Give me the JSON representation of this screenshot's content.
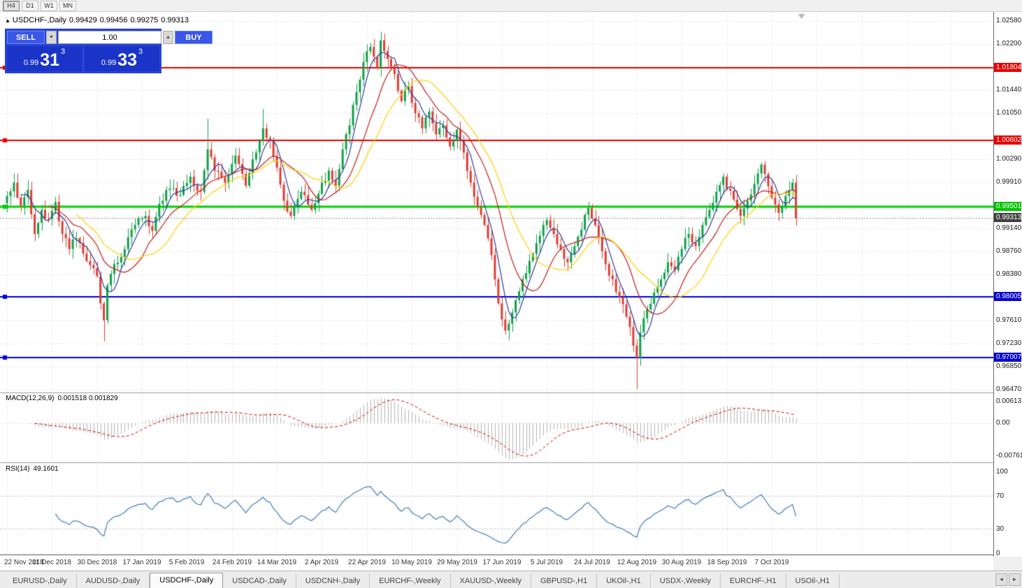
{
  "timeframe_toolbar": {
    "buttons": [
      "H4",
      "D1",
      "W1",
      "MN"
    ],
    "active": "H4"
  },
  "icons": {
    "collapse_icon": "▲",
    "spin_down": "▼",
    "spin_up": "▲",
    "tab_left": "◄",
    "tab_right": "►"
  },
  "chart_header": {
    "symbol": "USDCHF-,Daily",
    "open": "0.99429",
    "high": "0.99456",
    "low": "0.99275",
    "close": "0.99313"
  },
  "trade_panel": {
    "sell_label": "SELL",
    "buy_label": "BUY",
    "volume": "1.00",
    "bid": {
      "prefix": "0.99",
      "big": "31",
      "sup": "3"
    },
    "ask": {
      "prefix": "0.99",
      "big": "33",
      "sup": "3"
    }
  },
  "price_axis": {
    "grid_labels": [
      {
        "text": "1.02580",
        "price": 1.0258
      },
      {
        "text": "1.02200",
        "price": 1.022
      },
      {
        "text": "1.01440",
        "price": 1.0144
      },
      {
        "text": "1.01050",
        "price": 1.0105
      },
      {
        "text": "1.00290",
        "price": 1.0029
      },
      {
        "text": "0.99910",
        "price": 0.9991
      },
      {
        "text": "0.99140",
        "price": 0.9914
      },
      {
        "text": "0.98760",
        "price": 0.9876
      },
      {
        "text": "0.98380",
        "price": 0.9838
      },
      {
        "text": "0.97610",
        "price": 0.9761
      },
      {
        "text": "0.97230",
        "price": 0.9723
      },
      {
        "text": "0.96850",
        "price": 0.9685
      },
      {
        "text": "0.96470",
        "price": 0.9647
      }
    ]
  },
  "object_lines": [
    {
      "label": "1.01804",
      "price": 1.01804,
      "line": "#e80000",
      "width": 2,
      "box_bg": "#e80000",
      "box_fg": "#ffffff"
    },
    {
      "label": "1.00602",
      "price": 1.00602,
      "line": "#e80000",
      "width": 2,
      "box_bg": "#e80000",
      "box_fg": "#ffffff"
    },
    {
      "label": "0.99501",
      "price": 0.99501,
      "line": "#00d400",
      "width": 3,
      "box_bg": "#00c400",
      "box_fg": "#ffffff"
    },
    {
      "label": "0.98005",
      "price": 0.98005,
      "line": "#0000e0",
      "width": 2,
      "box_bg": "#0000d0",
      "box_fg": "#ffffff"
    },
    {
      "label": "0.97007",
      "price": 0.97007,
      "line": "#0000e0",
      "width": 2,
      "box_bg": "#0000d0",
      "box_fg": "#ffffff"
    }
  ],
  "current_price_line": {
    "label": "0.99313",
    "price": 0.99313,
    "line": "#909090",
    "box_bg": "#404040",
    "box_fg": "#ffffff"
  },
  "date_axis": [
    "22 Nov 2018",
    "11 Dec 2018",
    "30 Dec 2018",
    "17 Jan 2019",
    "5 Feb 2019",
    "24 Feb 2019",
    "14 Mar 2019",
    "2 Apr 2019",
    "22 Apr 2019",
    "10 May 2019",
    "29 May 2019",
    "17 Jun 2019",
    "5 Jul 2019",
    "24 Jul 2019",
    "12 Aug 2019",
    "30 Aug 2019",
    "18 Sep 2019",
    "7 Oct 2019"
  ],
  "macd_panel": {
    "label": "MACD(12,26,9)",
    "values": "0.001518 0.001829",
    "axis_labels": [
      "0.00613",
      "0.00",
      "-0.00761"
    ]
  },
  "rsi_panel": {
    "label": "RSI(14)",
    "value": "49.1601",
    "axis_labels": [
      "100",
      "70",
      "30",
      "0"
    ],
    "levels": [
      70,
      30
    ]
  },
  "tabs": {
    "items": [
      {
        "label": "EURUSD-,Daily",
        "active": false
      },
      {
        "label": "AUDUSD-,Daily",
        "active": false
      },
      {
        "label": "USDCHF-,Daily",
        "active": true
      },
      {
        "label": "USDCAD-,Daily",
        "active": false
      },
      {
        "label": "USDCNH-,Daily",
        "active": false
      },
      {
        "label": "EURCHF-,Weekly",
        "active": false
      },
      {
        "label": "XAUUSD-,Weekly",
        "active": false
      },
      {
        "label": "GBPUSD-,H1",
        "active": false
      },
      {
        "label": "UKOil-,H1",
        "active": false
      },
      {
        "label": "USDX-,Weekly",
        "active": false
      },
      {
        "label": "EURCHF-,H1",
        "active": false
      },
      {
        "label": "USOil-,H1",
        "active": false
      }
    ]
  },
  "colors": {
    "candle_up": "#0fa14a",
    "candle_down": "#e03c32",
    "ma_fast": "#2f3c9e",
    "ma_mid": "#c41e1e",
    "ma_slow": "#ffd200",
    "macd_hist": "#b4b4b4",
    "macd_signal": "#d40000",
    "rsi_line": "#3e7cb8",
    "grid": "#dcdcdc",
    "shift_marker": "#b8b8b8"
  },
  "chart_data": {
    "type": "candlestick",
    "symbol": "USDCHF",
    "timeframe": "Daily",
    "bars": 229,
    "approximate": true,
    "y_range": [
      0.9647,
      1.0258
    ],
    "grid_prices": [
      1.0258,
      1.022,
      1.0182,
      1.0144,
      1.0105,
      1.0067,
      1.0029,
      0.9991,
      0.9953,
      0.9914,
      0.9876,
      0.9838,
      0.98,
      0.9761,
      0.9723,
      0.9685,
      0.9647
    ],
    "close_keypoints": [
      [
        0,
        0.9968
      ],
      [
        2,
        0.999
      ],
      [
        4,
        0.9952
      ],
      [
        6,
        0.9978
      ],
      [
        8,
        0.9905
      ],
      [
        10,
        0.9945
      ],
      [
        12,
        0.993
      ],
      [
        14,
        0.9958
      ],
      [
        16,
        0.9905
      ],
      [
        18,
        0.988
      ],
      [
        20,
        0.9898
      ],
      [
        23,
        0.986
      ],
      [
        26,
        0.9835
      ],
      [
        27,
        0.979
      ],
      [
        28,
        0.9762
      ],
      [
        29,
        0.982
      ],
      [
        31,
        0.9855
      ],
      [
        34,
        0.988
      ],
      [
        37,
        0.992
      ],
      [
        40,
        0.9935
      ],
      [
        42,
        0.991
      ],
      [
        44,
        0.9955
      ],
      [
        47,
        0.998
      ],
      [
        50,
        0.997
      ],
      [
        53,
        1.0
      ],
      [
        56,
        0.9975
      ],
      [
        58,
        1.0045
      ],
      [
        60,
        1.001
      ],
      [
        63,
        0.999
      ],
      [
        66,
        1.0035
      ],
      [
        69,
        0.9985
      ],
      [
        72,
        1.004
      ],
      [
        74,
        1.008
      ],
      [
        76,
        1.006
      ],
      [
        78,
        1.0015
      ],
      [
        80,
        0.996
      ],
      [
        82,
        0.9935
      ],
      [
        85,
        0.9975
      ],
      [
        88,
        0.9945
      ],
      [
        91,
        0.999
      ],
      [
        93,
        1.001
      ],
      [
        95,
        0.9985
      ],
      [
        97,
        1.0045
      ],
      [
        99,
        1.0085
      ],
      [
        101,
        1.014
      ],
      [
        103,
        1.019
      ],
      [
        105,
        1.0215
      ],
      [
        107,
        1.018
      ],
      [
        108,
        1.0226
      ],
      [
        110,
        1.0195
      ],
      [
        112,
        1.017
      ],
      [
        114,
        1.0125
      ],
      [
        116,
        1.015
      ],
      [
        118,
        1.0105
      ],
      [
        120,
        1.008
      ],
      [
        122,
        1.0108
      ],
      [
        124,
        1.007
      ],
      [
        126,
        1.0085
      ],
      [
        128,
        1.005
      ],
      [
        130,
        1.0078
      ],
      [
        132,
        1.004
      ],
      [
        134,
        0.999
      ],
      [
        136,
        0.995
      ],
      [
        138,
        0.992
      ],
      [
        140,
        0.987
      ],
      [
        142,
        0.979
      ],
      [
        144,
        0.9745
      ],
      [
        146,
        0.9775
      ],
      [
        148,
        0.981
      ],
      [
        150,
        0.984
      ],
      [
        152,
        0.9872
      ],
      [
        154,
        0.9902
      ],
      [
        156,
        0.9928
      ],
      [
        158,
        0.9905
      ],
      [
        160,
        0.988
      ],
      [
        162,
        0.9858
      ],
      [
        164,
        0.9885
      ],
      [
        166,
        0.9912
      ],
      [
        168,
        0.9948
      ],
      [
        171,
        0.99
      ],
      [
        173,
        0.9855
      ],
      [
        175,
        0.983
      ],
      [
        177,
        0.98
      ],
      [
        179,
        0.9768
      ],
      [
        181,
        0.972
      ],
      [
        182,
        0.97
      ],
      [
        183,
        0.9742
      ],
      [
        185,
        0.978
      ],
      [
        187,
        0.9808
      ],
      [
        189,
        0.983
      ],
      [
        191,
        0.9858
      ],
      [
        193,
        0.9845
      ],
      [
        195,
        0.988
      ],
      [
        197,
        0.9905
      ],
      [
        199,
        0.9885
      ],
      [
        201,
        0.992
      ],
      [
        203,
        0.9945
      ],
      [
        205,
        0.9975
      ],
      [
        207,
        1.0
      ],
      [
        210,
        0.9962
      ],
      [
        212,
        0.9935
      ],
      [
        214,
        0.996
      ],
      [
        216,
        0.9988
      ],
      [
        218,
        1.002
      ],
      [
        221,
        0.9965
      ],
      [
        223,
        0.994
      ],
      [
        225,
        0.9968
      ],
      [
        227,
        0.999
      ],
      [
        228,
        0.99313
      ]
    ],
    "spikes": {
      "28": {
        "low": 0.9727
      },
      "58": {
        "high": 1.0096
      },
      "74": {
        "high": 1.0112
      },
      "108": {
        "high": 1.024
      },
      "182": {
        "low": 0.9648
      }
    },
    "moving_averages": [
      {
        "period": 5,
        "color_key": "ma_fast"
      },
      {
        "period": 13,
        "color_key": "ma_mid"
      },
      {
        "period": 21,
        "color_key": "ma_slow"
      }
    ],
    "indicators": [
      {
        "name": "MACD",
        "params": [
          12,
          26,
          9
        ],
        "current_main": 0.001518,
        "current_signal": 0.001829
      },
      {
        "name": "RSI",
        "params": [
          14
        ],
        "current": 49.1601
      }
    ]
  }
}
